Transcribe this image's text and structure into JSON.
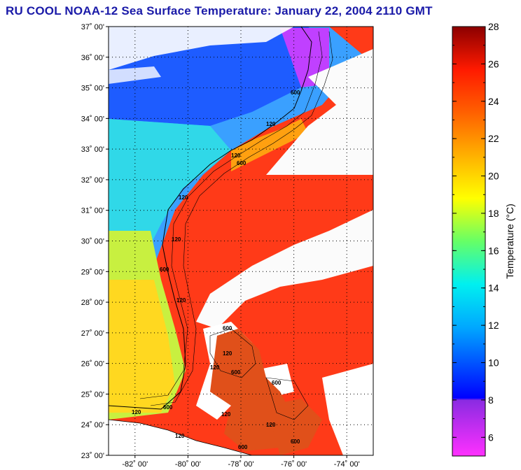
{
  "title": "RU COOL  NOAA-12  Sea Surface Temperature:  January 22, 2004 2110 GMT",
  "map": {
    "lat_range": [
      23,
      37
    ],
    "lon_range": [
      -83,
      -73
    ],
    "lat_ticks": [
      "23˚ 00'",
      "24˚ 00'",
      "25˚ 00'",
      "26˚ 00'",
      "27˚ 00'",
      "28˚ 00'",
      "29˚ 00'",
      "30˚ 00'",
      "31˚ 00'",
      "32˚ 00'",
      "33˚ 00'",
      "34˚ 00'",
      "35˚ 00'",
      "36˚ 00'",
      "37˚ 00'"
    ],
    "lon_ticks": [
      "-82˚ 00'",
      "-80˚ 00'",
      "-78˚ 00'",
      "-76˚ 00'",
      "-74˚ 00'"
    ],
    "contour_labels": [
      "120",
      "600"
    ]
  },
  "colorbar": {
    "label": "Temperature (°C)",
    "min": 5,
    "max": 28,
    "ticks": [
      "6",
      "8",
      "10",
      "12",
      "14",
      "16",
      "18",
      "20",
      "22",
      "24",
      "26",
      "28"
    ]
  }
}
